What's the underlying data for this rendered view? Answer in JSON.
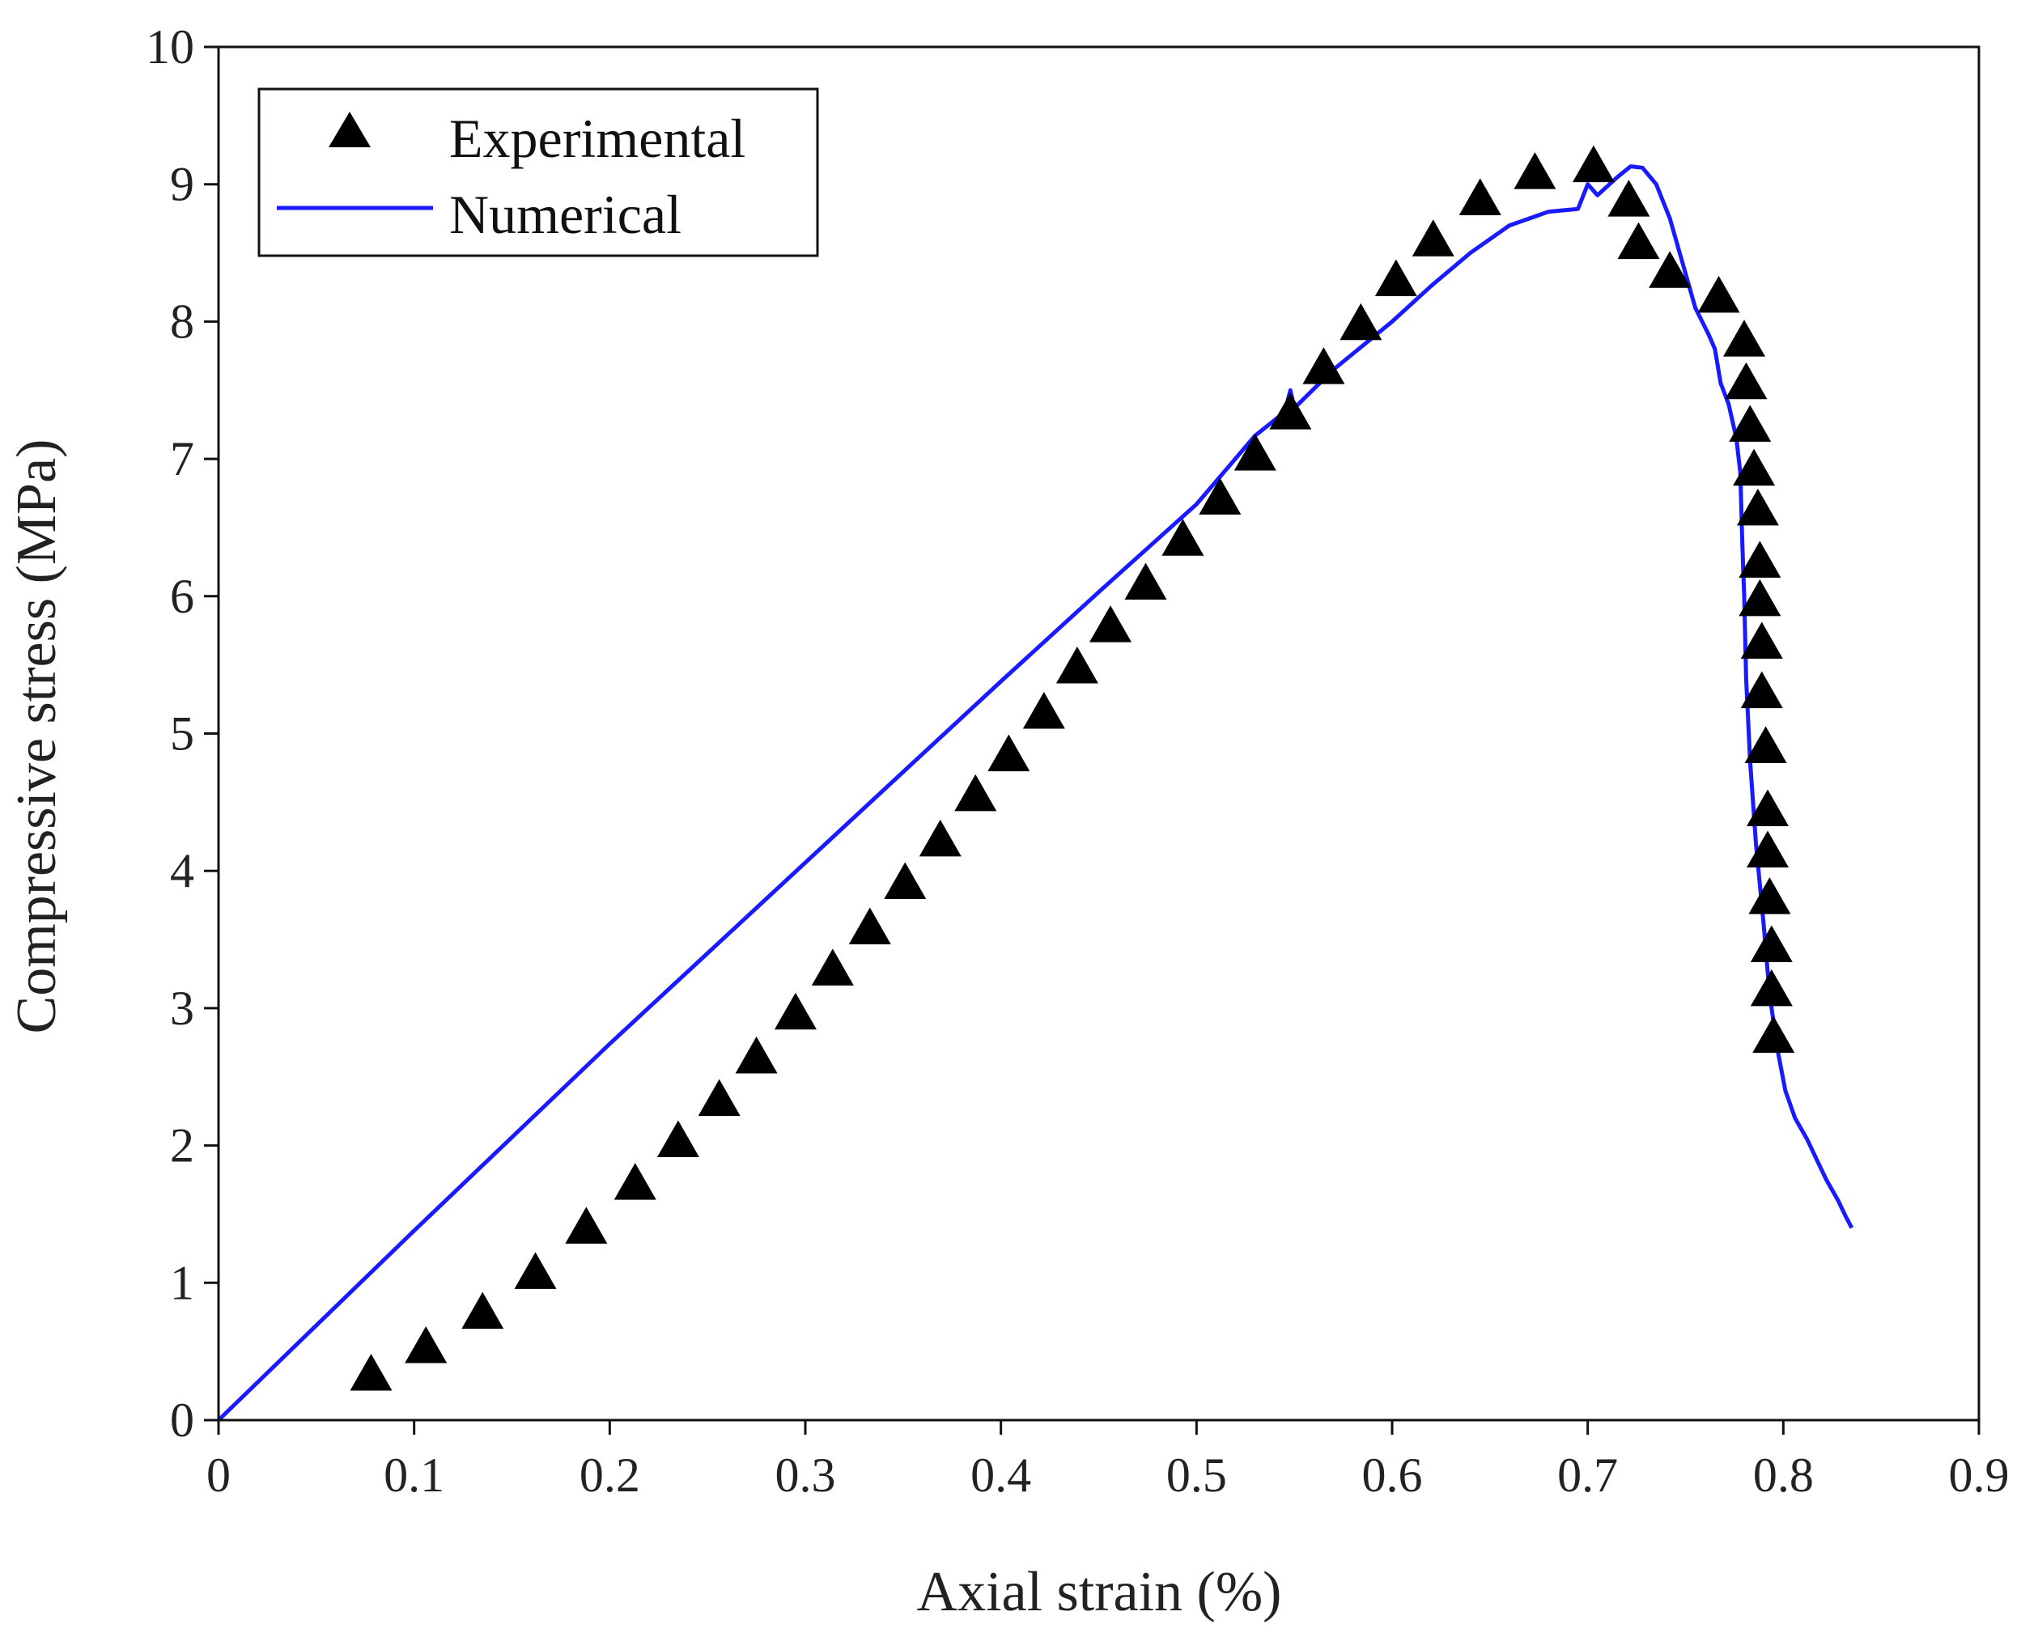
{
  "chart_data": {
    "type": "scatter",
    "title": "",
    "xlabel": "Axial strain (%)",
    "ylabel": "Compressive stress (MPa)",
    "xlim": [
      0,
      0.9
    ],
    "ylim": [
      0,
      10
    ],
    "xticks": [
      "0",
      "0.1",
      "0.2",
      "0.3",
      "0.4",
      "0.5",
      "0.6",
      "0.7",
      "0.8",
      "0.9"
    ],
    "yticks": [
      "0",
      "1",
      "2",
      "3",
      "4",
      "5",
      "6",
      "7",
      "8",
      "9",
      "10"
    ],
    "grid": false,
    "legend_position": "top-left",
    "series": [
      {
        "name": "Experimental",
        "kind": "markers",
        "marker": "triangle",
        "color": "#000000",
        "points": [
          [
            0.078,
            0.33
          ],
          [
            0.106,
            0.53
          ],
          [
            0.135,
            0.78
          ],
          [
            0.162,
            1.07
          ],
          [
            0.188,
            1.4
          ],
          [
            0.213,
            1.72
          ],
          [
            0.235,
            2.03
          ],
          [
            0.256,
            2.33
          ],
          [
            0.275,
            2.64
          ],
          [
            0.295,
            2.96
          ],
          [
            0.314,
            3.28
          ],
          [
            0.333,
            3.58
          ],
          [
            0.351,
            3.91
          ],
          [
            0.369,
            4.22
          ],
          [
            0.387,
            4.55
          ],
          [
            0.404,
            4.84
          ],
          [
            0.422,
            5.15
          ],
          [
            0.439,
            5.48
          ],
          [
            0.456,
            5.78
          ],
          [
            0.474,
            6.09
          ],
          [
            0.493,
            6.41
          ],
          [
            0.512,
            6.71
          ],
          [
            0.53,
            7.03
          ],
          [
            0.548,
            7.33
          ],
          [
            0.565,
            7.66
          ],
          [
            0.584,
            7.98
          ],
          [
            0.602,
            8.3
          ],
          [
            0.621,
            8.59
          ],
          [
            0.645,
            8.89
          ],
          [
            0.673,
            9.08
          ],
          [
            0.703,
            9.13
          ],
          [
            0.721,
            8.88
          ],
          [
            0.726,
            8.57
          ],
          [
            0.742,
            8.36
          ],
          [
            0.767,
            8.18
          ],
          [
            0.78,
            7.86
          ],
          [
            0.781,
            7.55
          ],
          [
            0.783,
            7.24
          ],
          [
            0.785,
            6.92
          ],
          [
            0.787,
            6.63
          ],
          [
            0.788,
            6.25
          ],
          [
            0.788,
            5.97
          ],
          [
            0.789,
            5.66
          ],
          [
            0.789,
            5.3
          ],
          [
            0.791,
            4.9
          ],
          [
            0.792,
            4.44
          ],
          [
            0.792,
            4.14
          ],
          [
            0.793,
            3.8
          ],
          [
            0.794,
            3.45
          ],
          [
            0.794,
            3.13
          ],
          [
            0.795,
            2.79
          ]
        ]
      },
      {
        "name": "Numerical",
        "kind": "line",
        "color": "#1a1aff",
        "points": [
          [
            0,
            0
          ],
          [
            0.05,
            0.69
          ],
          [
            0.1,
            1.38
          ],
          [
            0.15,
            2.06
          ],
          [
            0.2,
            2.74
          ],
          [
            0.25,
            3.4
          ],
          [
            0.3,
            4.06
          ],
          [
            0.35,
            4.72
          ],
          [
            0.4,
            5.38
          ],
          [
            0.45,
            6.03
          ],
          [
            0.5,
            6.67
          ],
          [
            0.53,
            7.17
          ],
          [
            0.545,
            7.34
          ],
          [
            0.548,
            7.5
          ],
          [
            0.55,
            7.37
          ],
          [
            0.57,
            7.65
          ],
          [
            0.6,
            8.0
          ],
          [
            0.62,
            8.26
          ],
          [
            0.64,
            8.5
          ],
          [
            0.66,
            8.7
          ],
          [
            0.68,
            8.8
          ],
          [
            0.695,
            8.82
          ],
          [
            0.7,
            9.0
          ],
          [
            0.705,
            8.92
          ],
          [
            0.715,
            9.05
          ],
          [
            0.722,
            9.13
          ],
          [
            0.728,
            9.12
          ],
          [
            0.735,
            9.0
          ],
          [
            0.742,
            8.75
          ],
          [
            0.748,
            8.45
          ],
          [
            0.755,
            8.1
          ],
          [
            0.762,
            7.9
          ],
          [
            0.765,
            7.8
          ],
          [
            0.768,
            7.55
          ],
          [
            0.772,
            7.4
          ],
          [
            0.776,
            7.15
          ],
          [
            0.778,
            6.9
          ],
          [
            0.779,
            6.4
          ],
          [
            0.78,
            6.0
          ],
          [
            0.781,
            5.4
          ],
          [
            0.783,
            4.8
          ],
          [
            0.786,
            4.2
          ],
          [
            0.79,
            3.6
          ],
          [
            0.793,
            3.1
          ],
          [
            0.797,
            2.7
          ],
          [
            0.801,
            2.4
          ],
          [
            0.806,
            2.2
          ],
          [
            0.812,
            2.05
          ],
          [
            0.817,
            1.9
          ],
          [
            0.822,
            1.75
          ],
          [
            0.828,
            1.6
          ],
          [
            0.832,
            1.48
          ],
          [
            0.835,
            1.4
          ]
        ]
      }
    ]
  }
}
